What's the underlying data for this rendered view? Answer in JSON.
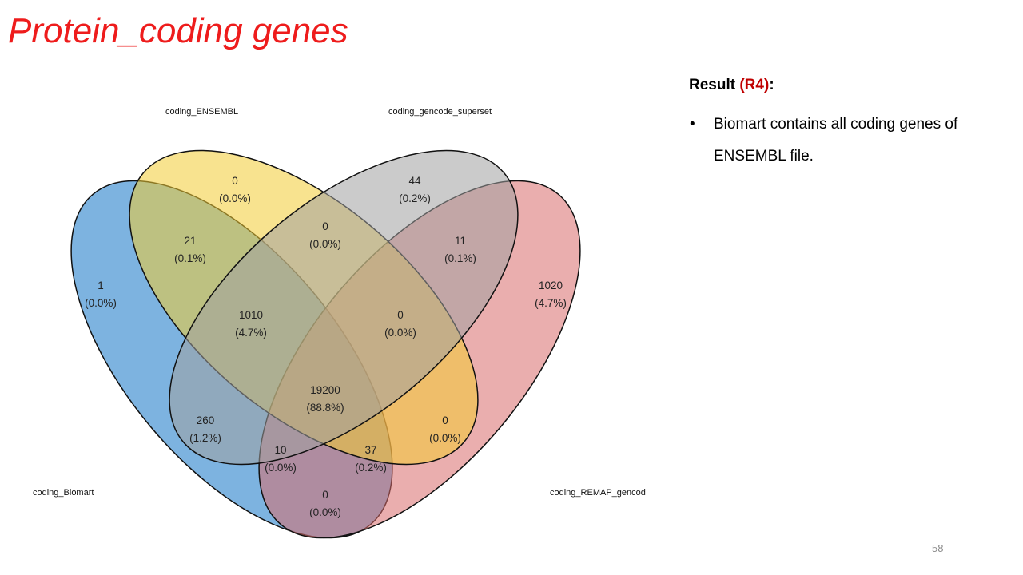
{
  "slide": {
    "title": "Protein_coding genes",
    "page_number": "58"
  },
  "result": {
    "heading_prefix": "Result ",
    "heading_tag": "(R4)",
    "heading_suffix": ":",
    "bullet_marker": "•",
    "bullets": [
      "Biomart contains all coding genes of ENSEMBL file."
    ],
    "tag_color": "#c00000"
  },
  "venn": {
    "sets": [
      {
        "key": "biomart",
        "label": "coding_Biomart",
        "color": "#3f8fd2"
      },
      {
        "key": "ensembl",
        "label": "coding_ENSEMBL",
        "color": "#f2cc33"
      },
      {
        "key": "gencode",
        "label": "coding_gencode_superset",
        "color": "#a0a0a0"
      },
      {
        "key": "remap",
        "label": "coding_REMAP_gencod",
        "color": "#d96b6b"
      }
    ],
    "regions": [
      {
        "key": "ensembl_only",
        "sets": [
          "ensembl"
        ],
        "count": "0",
        "percent": "(0.0%)"
      },
      {
        "key": "gencode_only",
        "sets": [
          "gencode"
        ],
        "count": "44",
        "percent": "(0.2%)"
      },
      {
        "key": "ensembl_gencode",
        "sets": [
          "ensembl",
          "gencode"
        ],
        "count": "0",
        "percent": "(0.0%)"
      },
      {
        "key": "biomart_ensembl",
        "sets": [
          "biomart",
          "ensembl"
        ],
        "count": "21",
        "percent": "(0.1%)"
      },
      {
        "key": "gencode_remap",
        "sets": [
          "gencode",
          "remap"
        ],
        "count": "11",
        "percent": "(0.1%)"
      },
      {
        "key": "biomart_only",
        "sets": [
          "biomart"
        ],
        "count": "1",
        "percent": "(0.0%)"
      },
      {
        "key": "remap_only",
        "sets": [
          "remap"
        ],
        "count": "1020",
        "percent": "(4.7%)"
      },
      {
        "key": "biomart_ensembl_gencode",
        "sets": [
          "biomart",
          "ensembl",
          "gencode"
        ],
        "count": "1010",
        "percent": "(4.7%)"
      },
      {
        "key": "ensembl_gencode_remap",
        "sets": [
          "ensembl",
          "gencode",
          "remap"
        ],
        "count": "0",
        "percent": "(0.0%)"
      },
      {
        "key": "all_four",
        "sets": [
          "biomart",
          "ensembl",
          "gencode",
          "remap"
        ],
        "count": "19200",
        "percent": "(88.8%)"
      },
      {
        "key": "biomart_gencode",
        "sets": [
          "biomart",
          "gencode"
        ],
        "count": "260",
        "percent": "(1.2%)"
      },
      {
        "key": "ensembl_remap",
        "sets": [
          "ensembl",
          "remap"
        ],
        "count": "0",
        "percent": "(0.0%)"
      },
      {
        "key": "biomart_gencode_remap",
        "sets": [
          "biomart",
          "gencode",
          "remap"
        ],
        "count": "10",
        "percent": "(0.0%)"
      },
      {
        "key": "biomart_ensembl_remap",
        "sets": [
          "biomart",
          "ensembl",
          "remap"
        ],
        "count": "37",
        "percent": "(0.2%)"
      },
      {
        "key": "biomart_remap",
        "sets": [
          "biomart",
          "remap"
        ],
        "count": "0",
        "percent": "(0.0%)"
      }
    ]
  }
}
